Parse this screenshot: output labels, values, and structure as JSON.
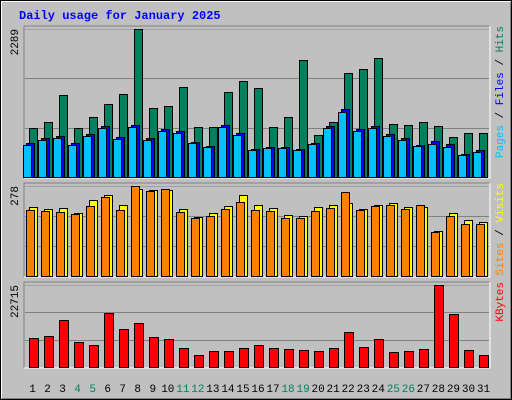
{
  "chart_data": [
    {
      "type": "bar",
      "title": "Daily usage for January 2025",
      "categories": [
        "1",
        "2",
        "3",
        "4",
        "5",
        "6",
        "7",
        "8",
        "9",
        "10",
        "11",
        "12",
        "13",
        "14",
        "15",
        "16",
        "17",
        "18",
        "19",
        "20",
        "21",
        "22",
        "23",
        "24",
        "25",
        "26",
        "27",
        "28",
        "29",
        "30",
        "31"
      ],
      "category_colors": [
        "#000000",
        "#000000",
        "#000000",
        "#00805c",
        "#00805c",
        "#000000",
        "#000000",
        "#000000",
        "#000000",
        "#000000",
        "#00805c",
        "#00805c",
        "#000000",
        "#000000",
        "#000000",
        "#000000",
        "#000000",
        "#00805c",
        "#00805c",
        "#000000",
        "#000000",
        "#000000",
        "#000000",
        "#000000",
        "#00805c",
        "#00805c",
        "#000000",
        "#000000",
        "#000000",
        "#000000",
        "#000000"
      ],
      "legend_separator": " / ",
      "series": [
        {
          "name": "Pages",
          "color": "#00c0ff",
          "values": [
            495,
            572,
            603,
            495,
            634,
            758,
            588,
            773,
            572,
            711,
            681,
            526,
            464,
            773,
            650,
            418,
            449,
            449,
            418,
            510,
            758,
            1005,
            711,
            758,
            634,
            572,
            479,
            510,
            464,
            340,
            387
          ]
        },
        {
          "name": "Files",
          "color": "#0000ff",
          "values": [
            520,
            598,
            630,
            520,
            660,
            790,
            612,
            805,
            598,
            740,
            709,
            548,
            483,
            805,
            677,
            436,
            468,
            468,
            436,
            532,
            790,
            1047,
            740,
            790,
            660,
            598,
            499,
            560,
            510,
            360,
            420
          ]
        },
        {
          "name": "Hits",
          "color": "#00805c",
          "values": [
            758,
            851,
            1268,
            758,
            928,
            1129,
            1284,
            2289,
            1067,
            1098,
            1392,
            773,
            773,
            1315,
            1485,
            1376,
            773,
            928,
            1810,
            650,
            851,
            1608,
            1670,
            1840,
            820,
            804,
            851,
            789,
            619,
            681,
            681
          ]
        }
      ],
      "ylim": [
        0,
        2289
      ],
      "yticks": [
        2289
      ],
      "grid_divisions": 3
    },
    {
      "type": "bar",
      "legend_separator": " / ",
      "series": [
        {
          "name": "Sites",
          "color": "#ff8000",
          "values": [
            205,
            200,
            198,
            190,
            215,
            245,
            205,
            278,
            262,
            270,
            198,
            178,
            185,
            208,
            230,
            205,
            200,
            180,
            178,
            200,
            210,
            260,
            205,
            215,
            218,
            208,
            220,
            135,
            185,
            162,
            160
          ]
        },
        {
          "name": "Visits",
          "color": "#ffff00",
          "values": [
            213,
            207,
            210,
            195,
            235,
            250,
            219,
            269,
            266,
            266,
            207,
            182,
            195,
            216,
            250,
            219,
            210,
            188,
            185,
            213,
            219,
            225,
            207,
            219,
            225,
            213,
            213,
            139,
            195,
            173,
            167
          ]
        }
      ],
      "ylim": [
        0,
        278
      ],
      "yticks": [
        278
      ],
      "grid_divisions": 3
    },
    {
      "type": "bar",
      "legend_separator": " / ",
      "series": [
        {
          "name": "KBytes",
          "color": "#ff0000",
          "values": [
            7937,
            8484,
            13136,
            6842,
            6021,
            15052,
            10400,
            12315,
            8210,
            7663,
            5200,
            3284,
            4379,
            4379,
            5200,
            6021,
            5200,
            4926,
            4652,
            4379,
            5200,
            9579,
            5474,
            7663,
            4105,
            4379,
            4926,
            22715,
            14778,
            4652,
            3284
          ]
        }
      ],
      "ylim": [
        0,
        22715
      ],
      "yticks": [
        22715
      ],
      "grid_divisions": 3
    }
  ]
}
